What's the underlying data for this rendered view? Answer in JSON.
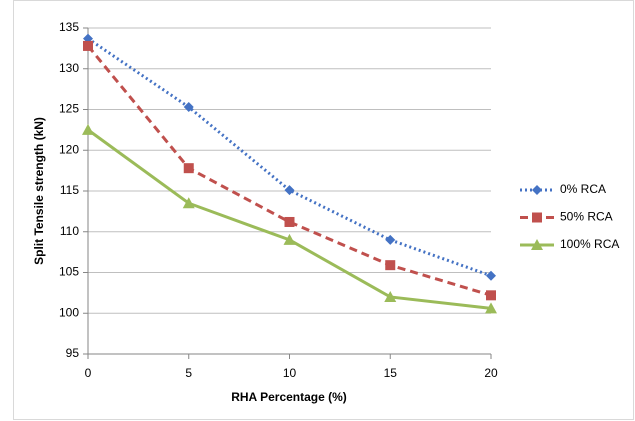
{
  "chart_data": {
    "type": "line",
    "xlabel": "RHA Percentage (%)",
    "ylabel": "Split Tensile strength (kN)",
    "x": [
      0,
      5,
      10,
      15,
      20
    ],
    "series": [
      {
        "name": "0% RCA",
        "color": "#4472c4",
        "marker": "diamond",
        "dash": "dotted",
        "values": [
          133.7,
          125.3,
          115.1,
          109.0,
          104.6
        ]
      },
      {
        "name": "50% RCA",
        "color": "#c0504d",
        "marker": "square",
        "dash": "dashed",
        "values": [
          132.8,
          117.8,
          111.2,
          105.9,
          102.2
        ]
      },
      {
        "name": "100% RCA",
        "color": "#9bbb59",
        "marker": "triangle",
        "dash": "solid",
        "values": [
          122.5,
          113.5,
          109.0,
          102.0,
          100.6
        ]
      }
    ],
    "xlim": [
      0,
      20
    ],
    "xticks": [
      0,
      5,
      10,
      15,
      20
    ],
    "ylim": [
      95,
      135
    ],
    "yticks": [
      95,
      100,
      105,
      110,
      115,
      120,
      125,
      130,
      135
    ],
    "grid": true,
    "legend": "right"
  }
}
